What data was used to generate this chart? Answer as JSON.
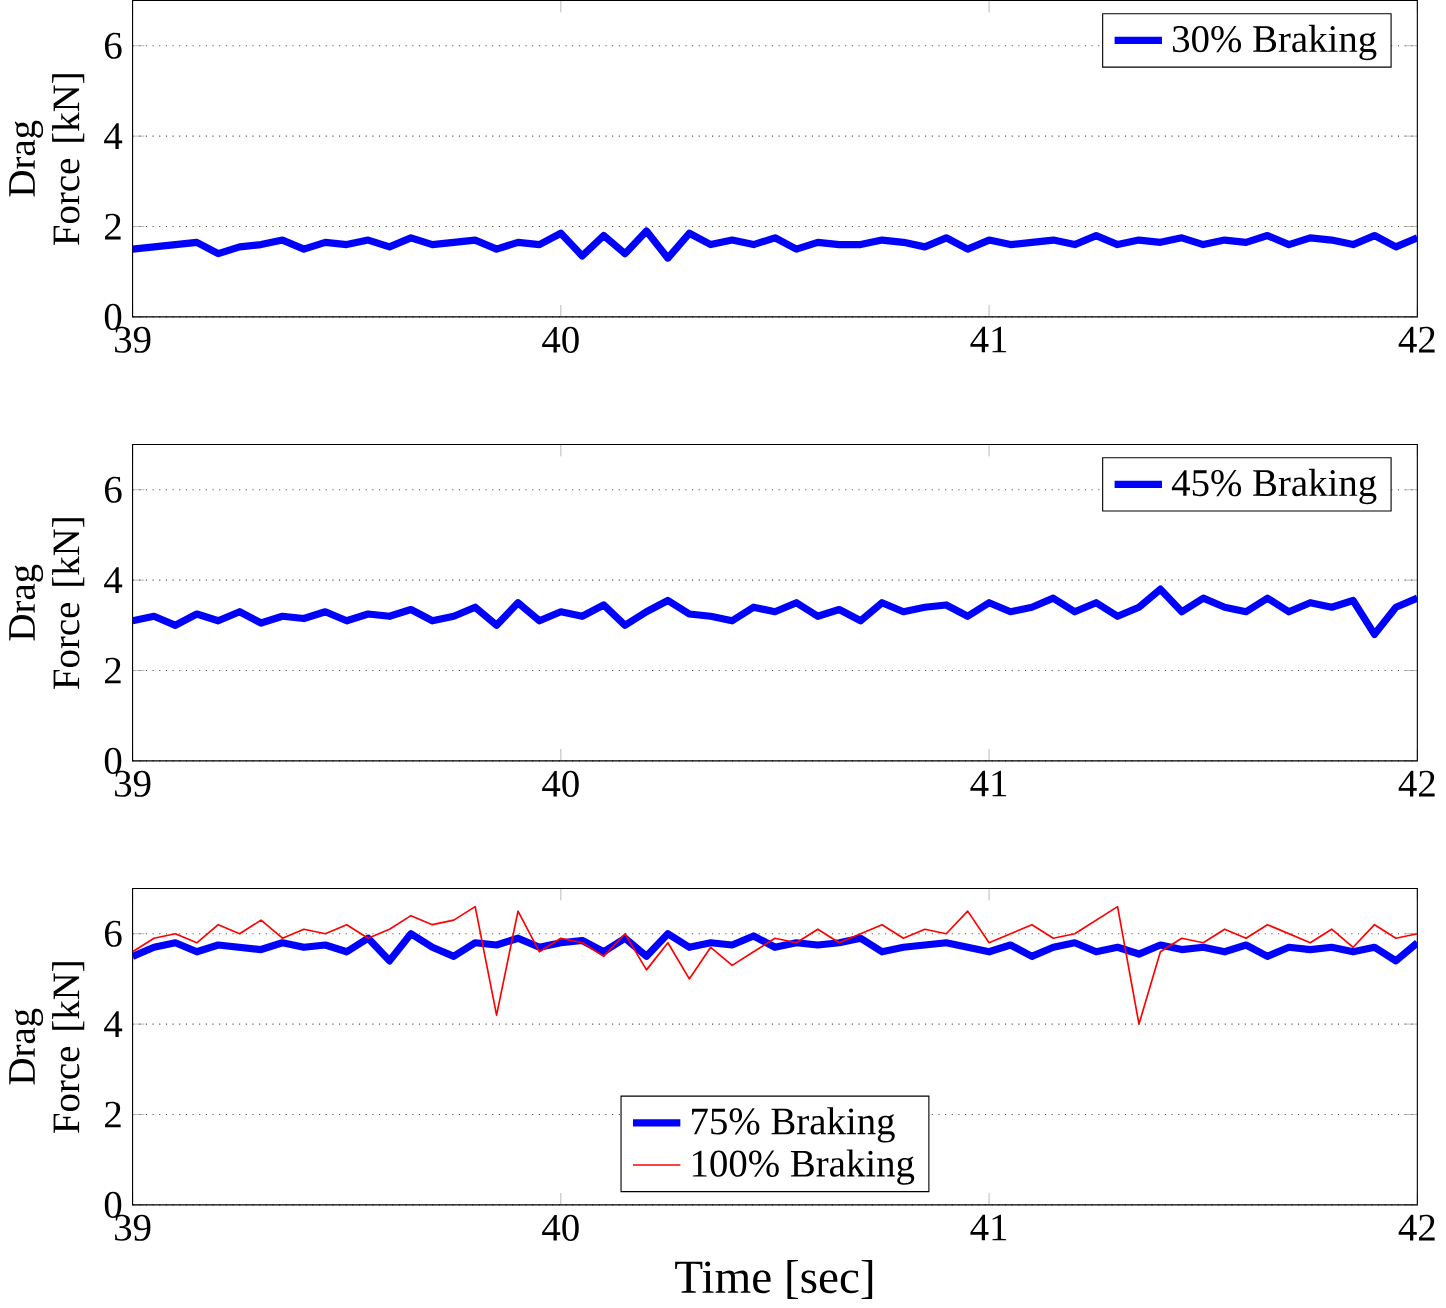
{
  "chart_data": [
    {
      "type": "line",
      "ylabel": "Drag Force [kN]",
      "xlim": [
        39,
        42
      ],
      "xticks": [
        39,
        40,
        41,
        42
      ],
      "ylim": [
        0,
        7
      ],
      "yticks": [
        0,
        2,
        4,
        6
      ],
      "grid": "y",
      "legend": "top right",
      "x": [
        39,
        39.05,
        39.1,
        39.15,
        39.2,
        39.25,
        39.3,
        39.35,
        39.4,
        39.45,
        39.5,
        39.55,
        39.6,
        39.65,
        39.7,
        39.75,
        39.8,
        39.85,
        39.9,
        39.95,
        40,
        40.05,
        40.1,
        40.15,
        40.2,
        40.25,
        40.3,
        40.35,
        40.4,
        40.45,
        40.5,
        40.55,
        40.6,
        40.65,
        40.7,
        40.75,
        40.8,
        40.85,
        40.9,
        40.95,
        41,
        41.05,
        41.1,
        41.15,
        41.2,
        41.25,
        41.3,
        41.35,
        41.4,
        41.45,
        41.5,
        41.55,
        41.6,
        41.65,
        41.7,
        41.75,
        41.8,
        41.85,
        41.9,
        41.95,
        42
      ],
      "series": [
        {
          "name": "30% Braking",
          "color": "#0000ff",
          "values": [
            1.5,
            1.55,
            1.6,
            1.65,
            1.4,
            1.55,
            1.6,
            1.7,
            1.5,
            1.65,
            1.6,
            1.7,
            1.55,
            1.75,
            1.6,
            1.65,
            1.7,
            1.5,
            1.65,
            1.6,
            1.85,
            1.35,
            1.8,
            1.4,
            1.9,
            1.3,
            1.85,
            1.6,
            1.7,
            1.6,
            1.75,
            1.5,
            1.65,
            1.6,
            1.6,
            1.7,
            1.65,
            1.55,
            1.75,
            1.5,
            1.7,
            1.6,
            1.65,
            1.7,
            1.6,
            1.8,
            1.6,
            1.7,
            1.65,
            1.75,
            1.6,
            1.7,
            1.65,
            1.8,
            1.6,
            1.75,
            1.7,
            1.6,
            1.8,
            1.55,
            1.75
          ]
        }
      ]
    },
    {
      "type": "line",
      "ylabel": "Drag Force [kN]",
      "xlim": [
        39,
        42
      ],
      "xticks": [
        39,
        40,
        41,
        42
      ],
      "ylim": [
        0,
        7
      ],
      "yticks": [
        0,
        2,
        4,
        6
      ],
      "grid": "y",
      "legend": "top right",
      "x": [
        39,
        39.05,
        39.1,
        39.15,
        39.2,
        39.25,
        39.3,
        39.35,
        39.4,
        39.45,
        39.5,
        39.55,
        39.6,
        39.65,
        39.7,
        39.75,
        39.8,
        39.85,
        39.9,
        39.95,
        40,
        40.05,
        40.1,
        40.15,
        40.2,
        40.25,
        40.3,
        40.35,
        40.4,
        40.45,
        40.5,
        40.55,
        40.6,
        40.65,
        40.7,
        40.75,
        40.8,
        40.85,
        40.9,
        40.95,
        41,
        41.05,
        41.1,
        41.15,
        41.2,
        41.25,
        41.3,
        41.35,
        41.4,
        41.45,
        41.5,
        41.55,
        41.6,
        41.65,
        41.7,
        41.75,
        41.8,
        41.85,
        41.9,
        41.95,
        42
      ],
      "series": [
        {
          "name": "45% Braking",
          "color": "#0000ff",
          "values": [
            3.1,
            3.2,
            3.0,
            3.25,
            3.1,
            3.3,
            3.05,
            3.2,
            3.15,
            3.3,
            3.1,
            3.25,
            3.2,
            3.35,
            3.1,
            3.2,
            3.4,
            3.0,
            3.5,
            3.1,
            3.3,
            3.2,
            3.45,
            3.0,
            3.3,
            3.55,
            3.25,
            3.2,
            3.1,
            3.4,
            3.3,
            3.5,
            3.2,
            3.35,
            3.1,
            3.5,
            3.3,
            3.4,
            3.45,
            3.2,
            3.5,
            3.3,
            3.4,
            3.6,
            3.3,
            3.5,
            3.2,
            3.4,
            3.8,
            3.3,
            3.6,
            3.4,
            3.3,
            3.6,
            3.3,
            3.5,
            3.4,
            3.55,
            2.8,
            3.4,
            3.6
          ]
        }
      ]
    },
    {
      "type": "line",
      "xlabel": "Time [sec]",
      "ylabel": "Drag Force [kN]",
      "xlim": [
        39,
        42
      ],
      "xticks": [
        39,
        40,
        41,
        42
      ],
      "ylim": [
        0,
        7
      ],
      "yticks": [
        0,
        2,
        4,
        6
      ],
      "grid": "y",
      "legend": "bottom",
      "x": [
        39,
        39.05,
        39.1,
        39.15,
        39.2,
        39.25,
        39.3,
        39.35,
        39.4,
        39.45,
        39.5,
        39.55,
        39.6,
        39.65,
        39.7,
        39.75,
        39.8,
        39.85,
        39.9,
        39.95,
        40,
        40.05,
        40.1,
        40.15,
        40.2,
        40.25,
        40.3,
        40.35,
        40.4,
        40.45,
        40.5,
        40.55,
        40.6,
        40.65,
        40.7,
        40.75,
        40.8,
        40.85,
        40.9,
        40.95,
        41,
        41.05,
        41.1,
        41.15,
        41.2,
        41.25,
        41.3,
        41.35,
        41.4,
        41.45,
        41.5,
        41.55,
        41.6,
        41.65,
        41.7,
        41.75,
        41.8,
        41.85,
        41.9,
        41.95,
        42
      ],
      "series": [
        {
          "name": "75% Braking",
          "color": "#0000ff",
          "values": [
            5.5,
            5.7,
            5.8,
            5.6,
            5.75,
            5.7,
            5.65,
            5.8,
            5.7,
            5.75,
            5.6,
            5.9,
            5.4,
            6.0,
            5.7,
            5.5,
            5.8,
            5.75,
            5.9,
            5.7,
            5.8,
            5.85,
            5.6,
            5.9,
            5.5,
            6.0,
            5.7,
            5.8,
            5.75,
            5.95,
            5.7,
            5.8,
            5.75,
            5.8,
            5.9,
            5.6,
            5.7,
            5.75,
            5.8,
            5.7,
            5.6,
            5.75,
            5.5,
            5.7,
            5.8,
            5.6,
            5.7,
            5.55,
            5.75,
            5.65,
            5.7,
            5.6,
            5.75,
            5.5,
            5.7,
            5.65,
            5.7,
            5.6,
            5.7,
            5.4,
            5.8
          ]
        },
        {
          "name": "100% Braking",
          "color": "#ff0000",
          "values": [
            5.6,
            5.9,
            6.0,
            5.8,
            6.2,
            6.0,
            6.3,
            5.9,
            6.1,
            6.0,
            6.2,
            5.9,
            6.1,
            6.4,
            6.2,
            6.3,
            6.6,
            4.2,
            6.5,
            5.6,
            5.9,
            5.8,
            5.5,
            6.0,
            5.2,
            5.8,
            5.0,
            5.7,
            5.3,
            5.6,
            5.9,
            5.8,
            6.1,
            5.8,
            6.0,
            6.2,
            5.9,
            6.1,
            6.0,
            6.5,
            5.8,
            6.0,
            6.2,
            5.9,
            6.0,
            6.3,
            6.6,
            4.0,
            5.6,
            5.9,
            5.8,
            6.1,
            5.9,
            6.2,
            6.0,
            5.8,
            6.1,
            5.7,
            6.2,
            5.9,
            6.0
          ]
        }
      ]
    }
  ]
}
